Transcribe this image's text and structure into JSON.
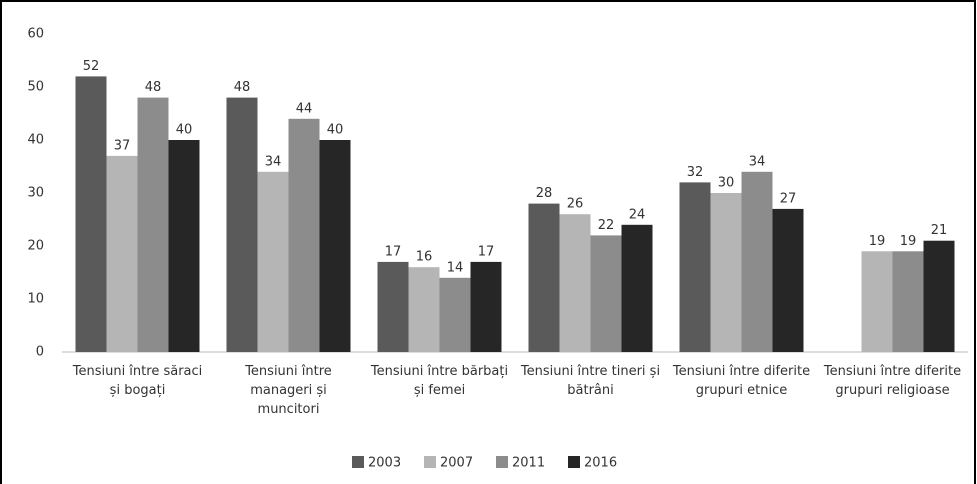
{
  "chart_data": {
    "type": "bar",
    "categories": [
      "Tensiuni între săraci și bogați",
      "Tensiuni între manageri și muncitori",
      "Tensiuni între bărbați și femei",
      "Tensiuni între tineri și bătrâni",
      "Tensiuni între diferite grupuri etnice",
      "Tensiuni între diferite grupuri religioase"
    ],
    "series": [
      {
        "name": "2003",
        "color": "#5a5a5a",
        "values": [
          52,
          48,
          17,
          28,
          32,
          null
        ]
      },
      {
        "name": "2007",
        "color": "#b5b5b5",
        "values": [
          37,
          34,
          16,
          26,
          30,
          19
        ]
      },
      {
        "name": "2011",
        "color": "#8c8c8c",
        "values": [
          48,
          44,
          14,
          22,
          34,
          19
        ]
      },
      {
        "name": "2016",
        "color": "#262626",
        "values": [
          40,
          40,
          17,
          24,
          27,
          21
        ]
      }
    ],
    "ylim": [
      0,
      60
    ],
    "yticks": [
      0,
      10,
      20,
      30,
      40,
      50,
      60
    ],
    "grid": false,
    "legend": "bottom"
  }
}
